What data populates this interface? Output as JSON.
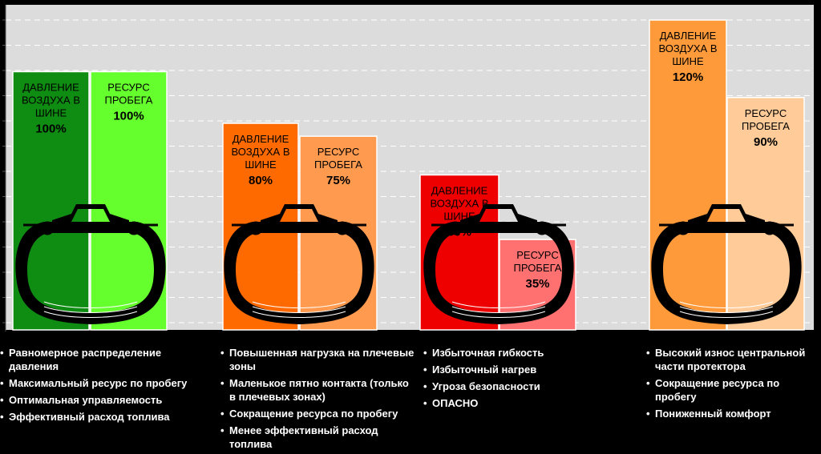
{
  "chart_data": {
    "type": "bar",
    "grid": true,
    "ylim": [
      0,
      125
    ],
    "groups": [
      {
        "pressure": {
          "label_lines": [
            "ДАВЛЕНИЕ",
            "ВОЗДУХА В",
            "ШИНЕ"
          ],
          "percent": "100%",
          "value": 100,
          "color": "#0f8c12",
          "text_color": "#000000"
        },
        "mileage": {
          "label_lines": [
            "РЕСУРС",
            "ПРОБЕГА"
          ],
          "percent": "100%",
          "value": 100,
          "color": "#66ff2e",
          "text_color": "#000000"
        }
      },
      {
        "pressure": {
          "label_lines": [
            "ДАВЛЕНИЕ",
            "ВОЗДУХА В",
            "ШИНЕ"
          ],
          "percent": "80%",
          "value": 80,
          "color": "#ff6a00",
          "text_color": "#000000"
        },
        "mileage": {
          "label_lines": [
            "РЕСУРС",
            "ПРОБЕГА"
          ],
          "percent": "75%",
          "value": 75,
          "color": "#ff9a4f",
          "text_color": "#000000"
        }
      },
      {
        "pressure": {
          "label_lines": [
            "ДАВЛЕНИЕ",
            "ВОЗДУХА В",
            "ШИНЕ"
          ],
          "percent": "60%",
          "value": 60,
          "color": "#ee0000",
          "text_color": "#000000"
        },
        "mileage": {
          "label_lines": [
            "РЕСУРС",
            "ПРОБЕГА"
          ],
          "percent": "35%",
          "value": 35,
          "color": "#ff7070",
          "text_color": "#000000"
        }
      },
      {
        "pressure": {
          "label_lines": [
            "ДАВЛЕНИЕ",
            "ВОЗДУХА В",
            "ШИНЕ"
          ],
          "percent": "120%",
          "value": 120,
          "color": "#ff9a3a",
          "text_color": "#000000"
        },
        "mileage": {
          "label_lines": [
            "РЕСУРС",
            "ПРОБЕГА"
          ],
          "percent": "90%",
          "value": 90,
          "color": "#ffcc99",
          "text_color": "#000000"
        }
      }
    ]
  },
  "notes": [
    [
      "Равномерное распределение давления",
      "Максимальный ресурс по пробегу",
      "Оптимальная управляемость",
      "Эффективный расход топлива"
    ],
    [
      "Повышенная нагрузка на плечевые зоны",
      "Маленькое пятно контакта (только в плечевых зонах)",
      "Сокращение ресурса по пробегу",
      "Менее эффективный расход топлива"
    ],
    [
      "Избыточная гибкость",
      "Избыточный нагрев",
      "Угроза безопасности",
      "ОПАСНО"
    ],
    [
      "Высокий износ центральной части протектора",
      "Сокращение ресурса по пробегу",
      "Пониженный комфорт"
    ]
  ],
  "colors": {
    "plot_bg": "#dcdcdc",
    "grid": "#ffffff",
    "page_bg": "#000000",
    "tire": "#000000"
  }
}
